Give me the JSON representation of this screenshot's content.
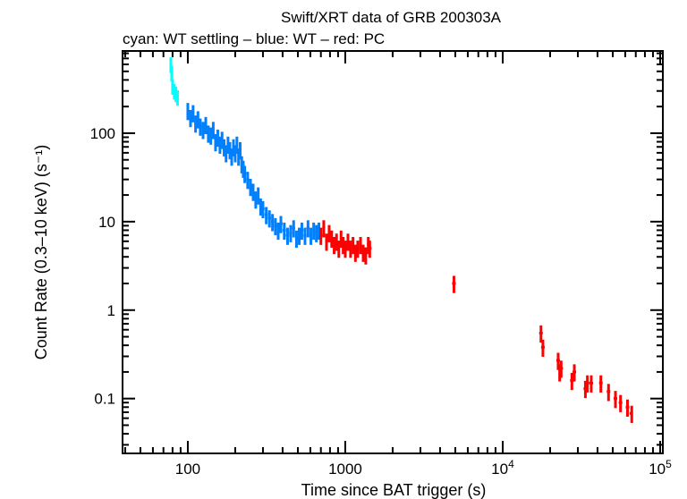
{
  "chart_data": {
    "type": "scatter",
    "title": "Swift/XRT data of GRB 200303A",
    "subtitle": "cyan: WT settling – blue: WT – red: PC",
    "xlabel": "Time since BAT trigger (s)",
    "ylabel": "Count Rate (0.3–10 keV) (s⁻¹)",
    "xscale": "log",
    "yscale": "log",
    "xlim": [
      38.5,
      104000
    ],
    "ylim": [
      0.024,
      850
    ],
    "x_ticks": [
      {
        "value": 100,
        "label": "100"
      },
      {
        "value": 1000,
        "label": "1000"
      },
      {
        "value": 10000,
        "base": "10",
        "exp": "4"
      },
      {
        "value": 100000,
        "base": "10",
        "exp": "5"
      }
    ],
    "y_ticks": [
      {
        "value": 0.1,
        "label": "0.1"
      },
      {
        "value": 1,
        "label": "1"
      },
      {
        "value": 10,
        "label": "10"
      },
      {
        "value": 100,
        "label": "100"
      }
    ],
    "grid": false,
    "series": [
      {
        "mode": "WT settling",
        "color": "#00ffff",
        "rel_err": 0.2,
        "points": [
          [
            78,
            600
          ],
          [
            79,
            480
          ],
          [
            80,
            340
          ],
          [
            82,
            300
          ],
          [
            84,
            280
          ],
          [
            86,
            255
          ]
        ]
      },
      {
        "mode": "WT",
        "color": "#0080ff",
        "rel_err": 0.22,
        "points": [
          [
            100,
            180
          ],
          [
            104,
            150
          ],
          [
            108,
            170
          ],
          [
            112,
            130
          ],
          [
            116,
            145
          ],
          [
            120,
            120
          ],
          [
            125,
            110
          ],
          [
            130,
            125
          ],
          [
            135,
            100
          ],
          [
            140,
            95
          ],
          [
            145,
            110
          ],
          [
            150,
            80
          ],
          [
            155,
            90
          ],
          [
            160,
            75
          ],
          [
            165,
            85
          ],
          [
            170,
            70
          ],
          [
            175,
            60
          ],
          [
            180,
            75
          ],
          [
            185,
            65
          ],
          [
            190,
            55
          ],
          [
            195,
            70
          ],
          [
            200,
            60
          ],
          [
            205,
            75
          ],
          [
            210,
            55
          ],
          [
            215,
            65
          ],
          [
            220,
            45
          ],
          [
            225,
            40
          ],
          [
            230,
            35
          ],
          [
            240,
            30
          ],
          [
            250,
            25
          ],
          [
            260,
            22
          ],
          [
            270,
            18
          ],
          [
            280,
            20
          ],
          [
            290,
            15
          ],
          [
            300,
            14
          ],
          [
            315,
            12
          ],
          [
            330,
            11
          ],
          [
            345,
            10
          ],
          [
            360,
            9
          ],
          [
            375,
            8
          ],
          [
            390,
            9.5
          ],
          [
            410,
            8
          ],
          [
            430,
            7
          ],
          [
            450,
            7.5
          ],
          [
            470,
            8.5
          ],
          [
            490,
            6.5
          ],
          [
            510,
            7
          ],
          [
            530,
            8
          ],
          [
            555,
            7
          ],
          [
            580,
            8.5
          ],
          [
            605,
            7
          ],
          [
            630,
            8
          ],
          [
            655,
            7.5
          ],
          [
            680,
            8
          ]
        ]
      },
      {
        "mode": "PC",
        "color": "#ff0000",
        "rel_err": 0.22,
        "points": [
          [
            700,
            7
          ],
          [
            730,
            8.5
          ],
          [
            760,
            6
          ],
          [
            790,
            7.5
          ],
          [
            820,
            6.5
          ],
          [
            850,
            5.5
          ],
          [
            880,
            6
          ],
          [
            910,
            5
          ],
          [
            940,
            6.5
          ],
          [
            970,
            5.5
          ],
          [
            1000,
            5
          ],
          [
            1040,
            6
          ],
          [
            1080,
            5
          ],
          [
            1120,
            5.5
          ],
          [
            1160,
            4.5
          ],
          [
            1200,
            5
          ],
          [
            1250,
            5.5
          ],
          [
            1300,
            4.5
          ],
          [
            1350,
            4.2
          ],
          [
            1400,
            5.5
          ],
          [
            1430,
            5
          ],
          [
            4900,
            2.0
          ],
          [
            17500,
            0.55
          ],
          [
            18000,
            0.38
          ],
          [
            22500,
            0.27
          ],
          [
            23000,
            0.2
          ],
          [
            23500,
            0.22
          ],
          [
            27500,
            0.16
          ],
          [
            28500,
            0.2
          ],
          [
            33500,
            0.13
          ],
          [
            34500,
            0.15
          ],
          [
            36500,
            0.15
          ],
          [
            42000,
            0.15
          ],
          [
            47000,
            0.12
          ],
          [
            52000,
            0.1
          ],
          [
            56000,
            0.09
          ],
          [
            62000,
            0.08
          ],
          [
            66000,
            0.068
          ]
        ]
      }
    ]
  }
}
